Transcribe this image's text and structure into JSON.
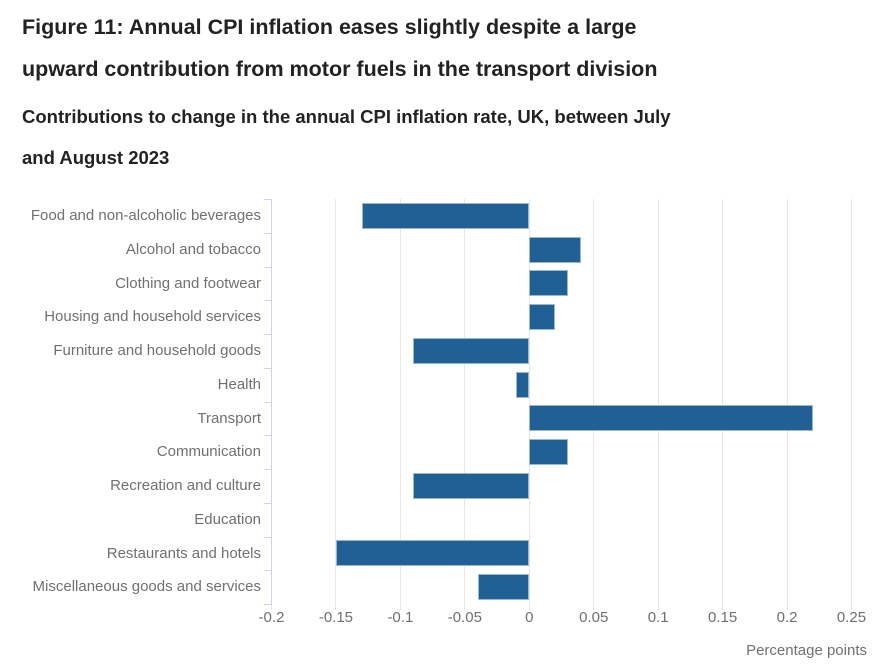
{
  "header": {
    "title": "Figure 11: Annual CPI inflation eases slightly despite a large\nupward contribution from motor fuels in the transport division",
    "subtitle": "Contributions to change in the annual CPI inflation rate, UK, between July\nand August 2023"
  },
  "chart_data": {
    "type": "bar",
    "orientation": "horizontal",
    "title": "Figure 11: Annual CPI inflation eases slightly despite a large upward contribution from motor fuels in the transport division",
    "subtitle": "Contributions to change in the annual CPI inflation rate, UK, between July and August 2023",
    "categories": [
      "Food and non-alcoholic beverages",
      "Alcohol and tobacco",
      "Clothing and footwear",
      "Housing and household services",
      "Furniture and household goods",
      "Health",
      "Transport",
      "Communication",
      "Recreation and culture",
      "Education",
      "Restaurants and hotels",
      "Miscellaneous goods and services"
    ],
    "values": [
      -0.13,
      0.04,
      0.03,
      0.02,
      -0.09,
      -0.01,
      0.22,
      0.03,
      -0.09,
      0,
      -0.15,
      -0.04
    ],
    "xlabel": "Percentage points",
    "ylabel": "",
    "xlim": [
      -0.2,
      0.25
    ],
    "x_ticks": [
      -0.2,
      -0.15,
      -0.1,
      -0.05,
      0,
      0.05,
      0.1,
      0.15,
      0.2,
      0.25
    ],
    "x_tick_labels": [
      "-0.2",
      "-0.15",
      "-0.1",
      "-0.05",
      "0",
      "0.05",
      "0.1",
      "0.15",
      "0.2",
      "0.25"
    ],
    "grid": true,
    "legend": false,
    "colors": {
      "bar": "#206095",
      "bar_border": "#9cb8d1",
      "grid_line": "#e6e6e6",
      "axis_line": "#ccd3ec",
      "axis_text": "#707070",
      "heading_text": "#222222"
    }
  }
}
